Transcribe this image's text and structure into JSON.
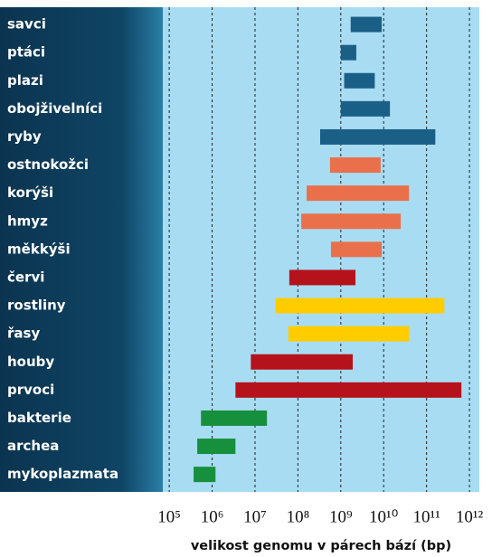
{
  "chart_data": {
    "type": "range-bar",
    "xlabel": "velikost genomu v párech bází (bp)",
    "categories": [
      "savci",
      "ptáci",
      "plazi",
      "obojživelníci",
      "ryby",
      "ostnokožci",
      "korýši",
      "hmyz",
      "měkkýši",
      "červi",
      "rostliny",
      "řasy",
      "houby",
      "prvoci",
      "bakterie",
      "archea",
      "mykoplazmata"
    ],
    "values": [
      [
        1700000000,
        9000000000
      ],
      [
        1000000000,
        2300000000
      ],
      [
        1200000000,
        6200000000
      ],
      [
        1000000000,
        14000000000
      ],
      [
        330000000,
        160000000000
      ],
      [
        560000000,
        8500000000
      ],
      [
        160000000,
        39000000000
      ],
      [
        120000000,
        25000000000
      ],
      [
        590000000,
        9000000000
      ],
      [
        63000000,
        2200000000
      ],
      [
        30000000,
        260000000000
      ],
      [
        60000000,
        39000000000
      ],
      [
        8000000,
        1900000000
      ],
      [
        3500000,
        650000000000
      ],
      [
        550000,
        19000000
      ],
      [
        450000,
        3500000
      ],
      [
        370000,
        1200000
      ]
    ],
    "colors": [
      "#1a5f86",
      "#1a5f86",
      "#1a5f86",
      "#1a5f86",
      "#1a5f86",
      "#e9704b",
      "#e9704b",
      "#e9704b",
      "#e9704b",
      "#b5121b",
      "#ffcc00",
      "#ffcc00",
      "#b5121b",
      "#b5121b",
      "#17903d",
      "#17903d",
      "#17903d"
    ],
    "xscale": "log",
    "grid": true,
    "xlim": [
      70795,
      1700000000000
    ],
    "xticks": [
      {
        "value": 100000,
        "label": "10⁵"
      },
      {
        "value": 1000000,
        "label": "10⁶"
      },
      {
        "value": 10000000,
        "label": "10⁷"
      },
      {
        "value": 100000000,
        "label": "10⁸"
      },
      {
        "value": 1000000000,
        "label": "10⁹"
      },
      {
        "value": 10000000000,
        "label": "10¹⁰"
      },
      {
        "value": 100000000000,
        "label": "10¹¹"
      },
      {
        "value": 1000000000000,
        "label": "10¹²"
      }
    ]
  }
}
